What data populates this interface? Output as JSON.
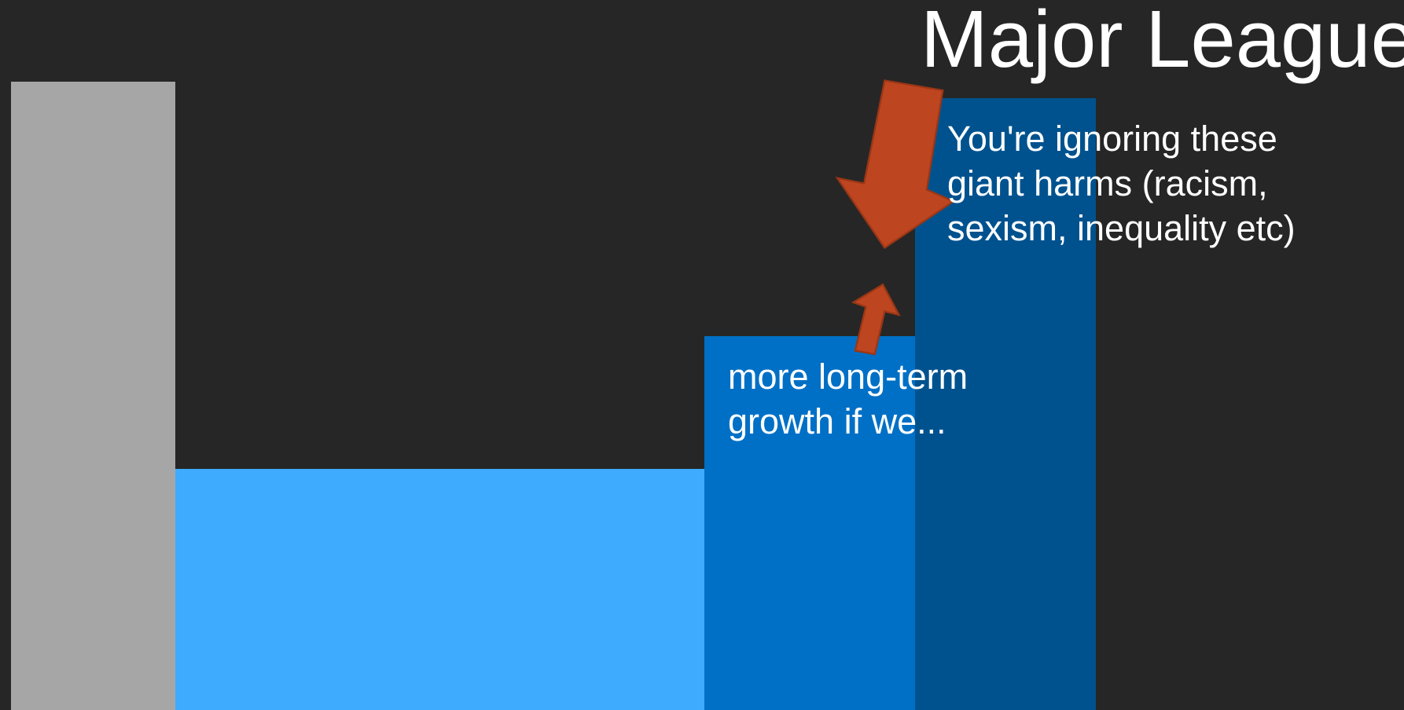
{
  "title": "Major League",
  "callouts": [
    {
      "lines": [
        "You're ignoring these",
        "giant harms (racism,",
        "sexism, inequality etc)"
      ]
    },
    {
      "lines": [
        "more long-term",
        "growth if we..."
      ]
    }
  ]
}
